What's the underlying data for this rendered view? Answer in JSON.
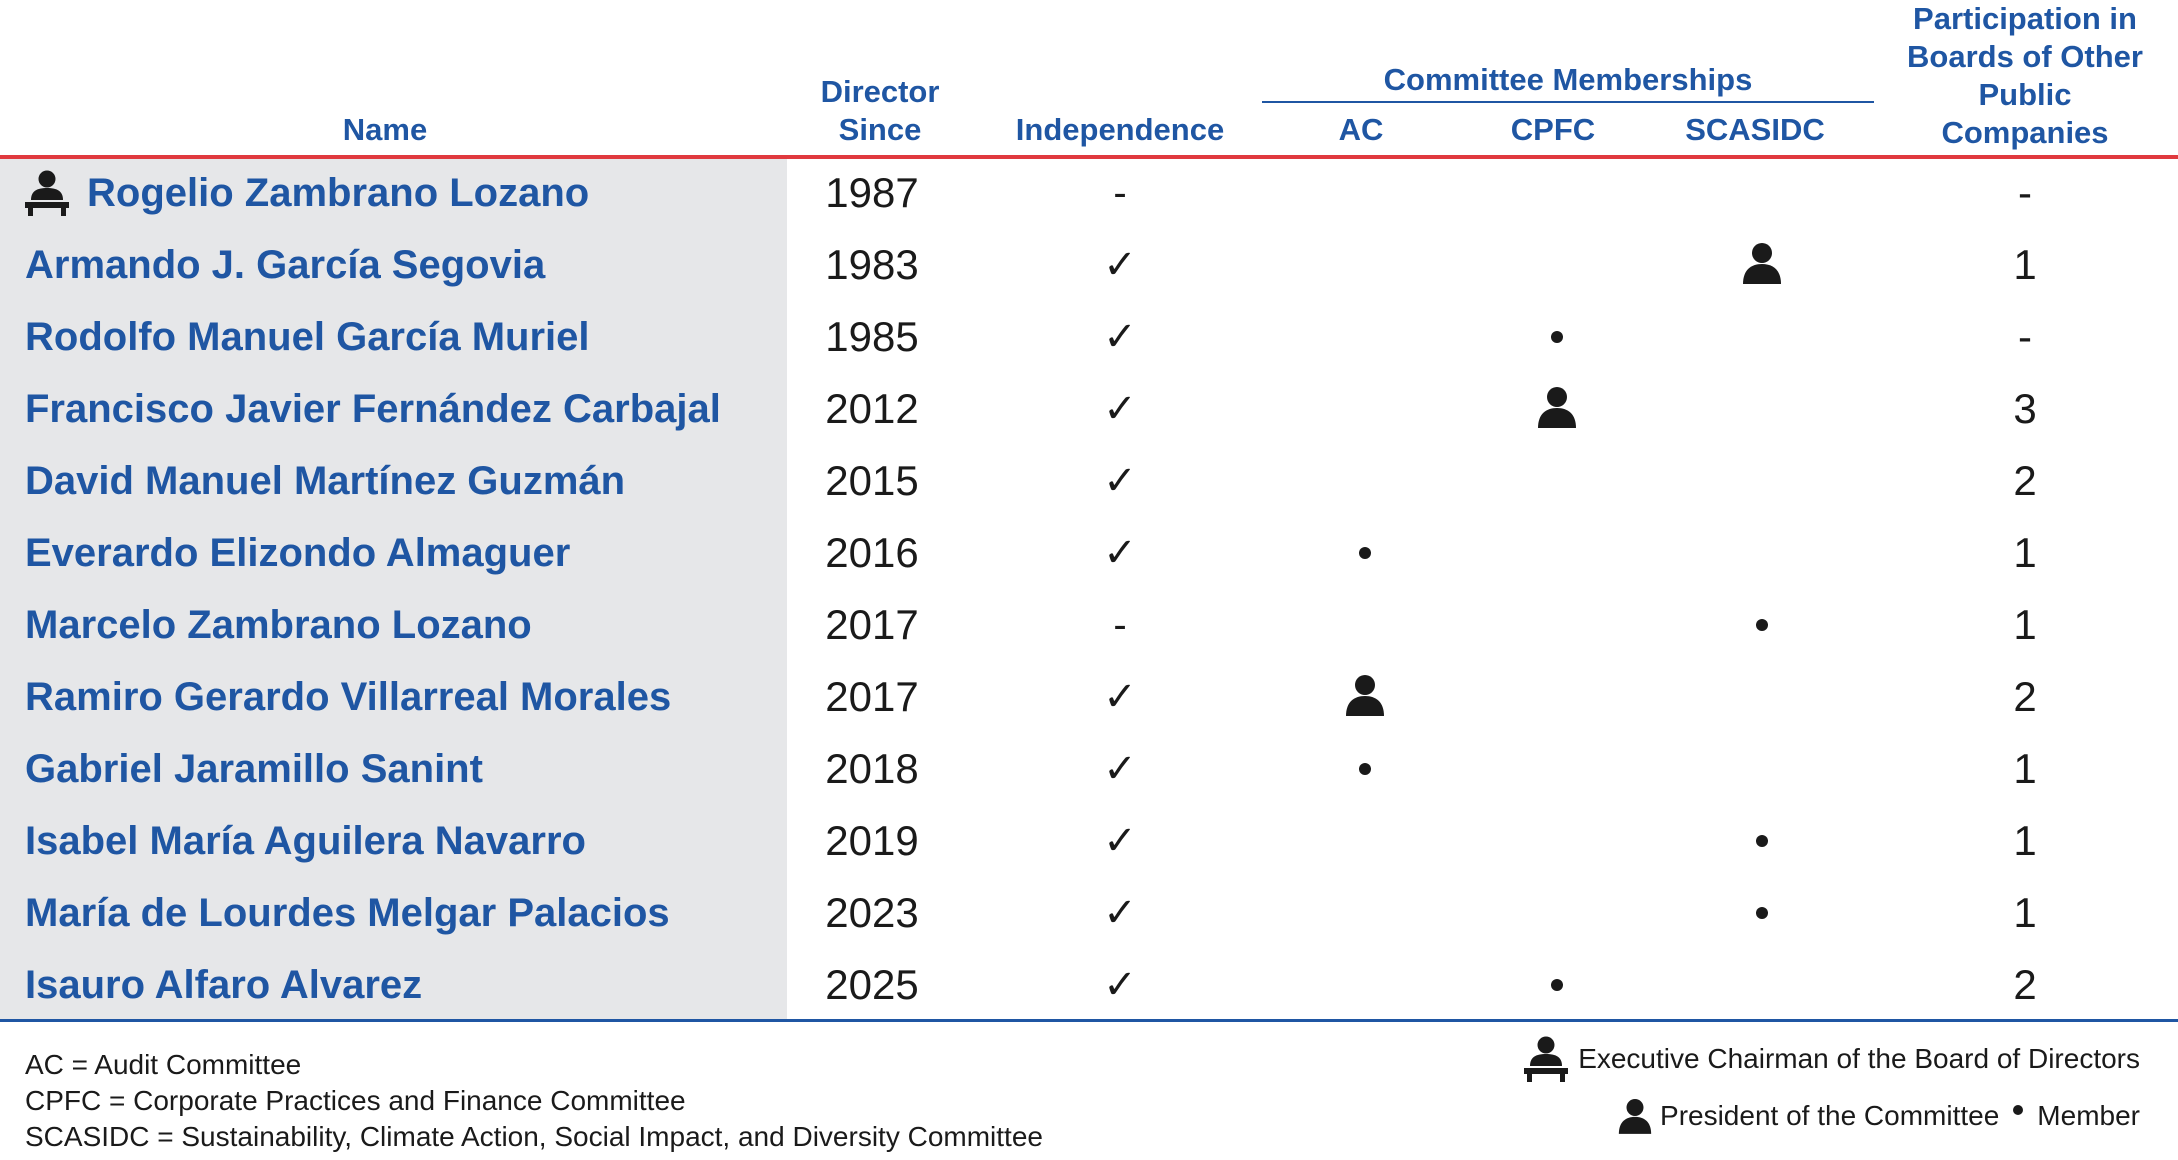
{
  "headers": {
    "name": "Name",
    "director_since_1": "Director",
    "director_since_2": "Since",
    "independence": "Independence",
    "committee_memberships": "Committee Memberships",
    "ac": "AC",
    "cpfc": "CPFC",
    "scasidc": "SCASIDC",
    "participation_1": "Participation in",
    "participation_2": "Boards of Other",
    "participation_3": "Public",
    "participation_4": "Companies"
  },
  "rows": [
    {
      "name": "Rogelio Zambrano Lozano",
      "year": "1987",
      "independence": "-",
      "boards": "-"
    },
    {
      "name": "Armando J. García Segovia",
      "year": "1983",
      "independence": "✓",
      "boards": "1"
    },
    {
      "name": "Rodolfo Manuel García Muriel",
      "year": "1985",
      "independence": "✓",
      "boards": "-"
    },
    {
      "name": "Francisco Javier Fernández Carbajal",
      "year": "2012",
      "independence": "✓",
      "boards": "3"
    },
    {
      "name": "David Manuel Martínez Guzmán",
      "year": "2015",
      "independence": "✓",
      "boards": "2"
    },
    {
      "name": "Everardo Elizondo Almaguer",
      "year": "2016",
      "independence": "✓",
      "boards": "1"
    },
    {
      "name": "Marcelo Zambrano Lozano",
      "year": "2017",
      "independence": "-",
      "boards": "1"
    },
    {
      "name": "Ramiro Gerardo Villarreal Morales",
      "year": "2017",
      "independence": "✓",
      "boards": "2"
    },
    {
      "name": "Gabriel Jaramillo Sanint",
      "year": "2018",
      "independence": "✓",
      "boards": "1"
    },
    {
      "name": "Isabel María Aguilera Navarro",
      "year": "2019",
      "independence": "✓",
      "boards": "1"
    },
    {
      "name": "María de Lourdes Melgar Palacios",
      "year": "2023",
      "independence": "✓",
      "boards": "1"
    },
    {
      "name": "Isauro Alfaro Alvarez",
      "year": "2025",
      "independence": "✓",
      "boards": "2"
    }
  ],
  "legend": {
    "ac": "AC = Audit Committee",
    "cpfc": "CPFC = Corporate Practices and Finance Committee",
    "scasidc": "SCASIDC = Sustainability, Climate Action, Social Impact, and Diversity Committee",
    "chairman": "Executive Chairman of the Board of Directors",
    "president": "President of the Committee",
    "member": "Member"
  },
  "colors": {
    "accent_blue": "#1f56a3",
    "red_rule": "#e0393e",
    "name_bg": "#e6e7e9"
  }
}
